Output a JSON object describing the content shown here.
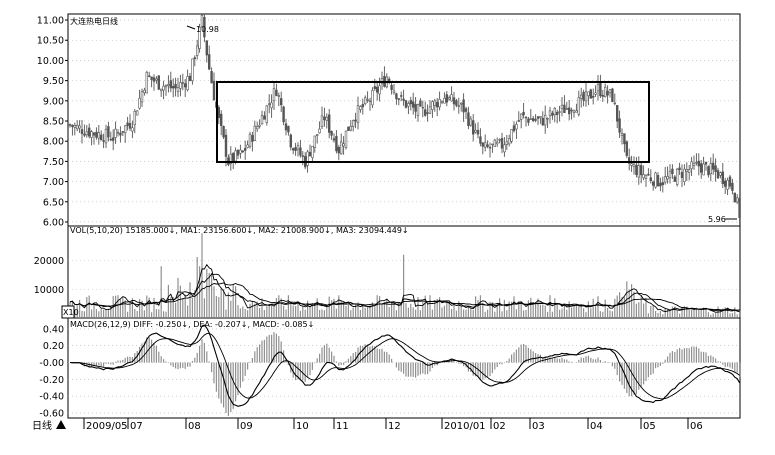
{
  "title": "大连热电日线",
  "price_panel": {
    "high_label": "10.98",
    "low_label": "5.96",
    "ylim": [
      5.9,
      11.15
    ],
    "ticks": [
      "11.00",
      "10.50",
      "10.00",
      "9.50",
      "9.00",
      "8.50",
      "8.00",
      "7.50",
      "7.00",
      "6.50",
      "6.00"
    ]
  },
  "vol_panel": {
    "header": "VOL(5,10,20) 15185.000↓, MA1: 23156.600↓, MA2: 21008.900↓, MA3: 23094.449↓",
    "ticks": [
      "20000",
      "10000"
    ],
    "unit_label": "X10"
  },
  "macd_panel": {
    "header": "MACD(26,12,9) DIFF: -0.250↓, DEA: -0.207↓, MACD: -0.085↓",
    "ticks": [
      "0.40",
      "0.20",
      "-0.00",
      "-0.20",
      "-0.40",
      "-0.60"
    ]
  },
  "x_axis": {
    "period_label": "日线",
    "labels": [
      "2009/05",
      "07",
      "08",
      "09",
      "10",
      "11",
      "12",
      "2010/01",
      "02",
      "03",
      "04",
      "05",
      "06"
    ]
  },
  "colors": {
    "line": "#000000",
    "bar": "#808080",
    "grid": "#b4b4b4",
    "background": "#ffffff"
  },
  "chart_data": {
    "type": "candlestick",
    "title": "大连热电日线",
    "series": [
      {
        "name": "price",
        "points": [
          {
            "date": "2009/05",
            "value": 8.4
          },
          {
            "date": "2009/06",
            "value": 8.2
          },
          {
            "date": "2009/07",
            "value": 9.5
          },
          {
            "date": "2009/08",
            "value": 10.98
          },
          {
            "date": "2009/08 end",
            "value": 7.5
          },
          {
            "date": "2009/09",
            "value": 8.5
          },
          {
            "date": "2009/10",
            "value": 8.2
          },
          {
            "date": "2009/11",
            "value": 8.7
          },
          {
            "date": "2009/12",
            "value": 9.4
          },
          {
            "date": "2010/01",
            "value": 8.9
          },
          {
            "date": "2010/02",
            "value": 7.8
          },
          {
            "date": "2010/03",
            "value": 8.6
          },
          {
            "date": "2010/04",
            "value": 9.2
          },
          {
            "date": "2010/05",
            "value": 7.2
          },
          {
            "date": "2010/06",
            "value": 7.3
          },
          {
            "date": "2010/06 end",
            "value": 5.96
          }
        ]
      }
    ],
    "ylim": [
      5.9,
      11.15
    ],
    "annotations": [
      "10.98",
      "5.96"
    ]
  }
}
